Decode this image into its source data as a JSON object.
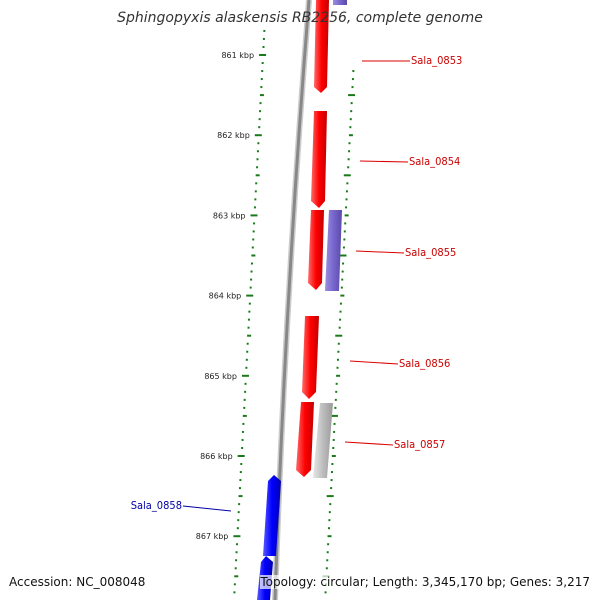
{
  "title": "Sphingopyxis alaskensis RB2256, complete genome",
  "footer": {
    "accession": "Accession: NC_008048",
    "summary": "Topology: circular; Length: 3,345,170 bp; Genes: 3,217"
  },
  "colors": {
    "forward_gene": "#ff0000",
    "reverse_gene": "#0000ff",
    "reverse_gene_light": "#7766cc",
    "other_feature": "#bbbbbb",
    "tick": "#1a7a1a",
    "forward_label": "#cc0000",
    "reverse_label": "#0000aa",
    "backbone": "#888888"
  },
  "ruler": [
    {
      "label": "861 kbp",
      "kbp": 861
    },
    {
      "label": "862 kbp",
      "kbp": 862
    },
    {
      "label": "863 kbp",
      "kbp": 863
    },
    {
      "label": "864 kbp",
      "kbp": 864
    },
    {
      "label": "865 kbp",
      "kbp": 865
    },
    {
      "label": "866 kbp",
      "kbp": 866
    },
    {
      "label": "867 kbp",
      "kbp": 867
    }
  ],
  "gene_labels": [
    {
      "name": "Sala_0853",
      "strand": "forward"
    },
    {
      "name": "Sala_0854",
      "strand": "forward"
    },
    {
      "name": "Sala_0855",
      "strand": "forward"
    },
    {
      "name": "Sala_0856",
      "strand": "forward"
    },
    {
      "name": "Sala_0857",
      "strand": "forward"
    },
    {
      "name": "Sala_0858",
      "strand": "reverse"
    }
  ]
}
